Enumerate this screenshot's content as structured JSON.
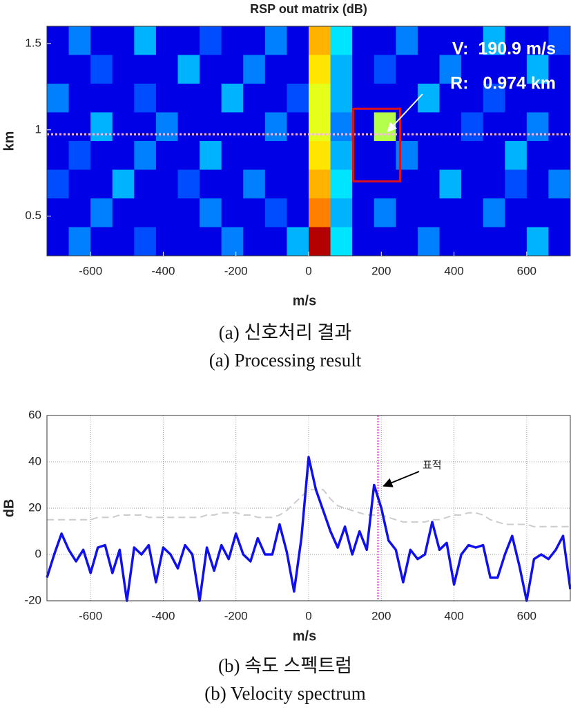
{
  "chart_data": [
    {
      "type": "heatmap",
      "title": "RSP out matrix (dB)",
      "xlabel": "m/s",
      "ylabel": "km",
      "xlim": [
        -720,
        720
      ],
      "ylim": [
        0.27,
        1.6
      ],
      "xticks": [
        -600,
        -400,
        -200,
        0,
        200,
        400,
        600
      ],
      "yticks": [
        0.5,
        1,
        1.5
      ],
      "zlim": [
        0,
        40
      ],
      "colormap": "jet",
      "grid": false,
      "z": [
        [
          4,
          10,
          4,
          4,
          12,
          4,
          4,
          8,
          4,
          4,
          10,
          4,
          28,
          14,
          4,
          4,
          10,
          4,
          4,
          4,
          12,
          4,
          4,
          8
        ],
        [
          4,
          4,
          8,
          4,
          4,
          4,
          12,
          4,
          4,
          10,
          4,
          4,
          26,
          12,
          4,
          8,
          4,
          4,
          10,
          4,
          4,
          4,
          12,
          4
        ],
        [
          10,
          4,
          4,
          4,
          8,
          4,
          4,
          4,
          12,
          4,
          4,
          8,
          24,
          12,
          4,
          4,
          4,
          12,
          4,
          4,
          8,
          4,
          4,
          4
        ],
        [
          4,
          4,
          12,
          4,
          4,
          10,
          4,
          4,
          4,
          4,
          10,
          4,
          24,
          10,
          4,
          22,
          4,
          4,
          4,
          8,
          4,
          4,
          10,
          4
        ],
        [
          4,
          8,
          4,
          4,
          10,
          4,
          4,
          12,
          4,
          4,
          4,
          4,
          26,
          12,
          4,
          4,
          10,
          4,
          4,
          4,
          4,
          12,
          4,
          4
        ],
        [
          8,
          4,
          4,
          12,
          4,
          4,
          8,
          4,
          4,
          10,
          4,
          4,
          28,
          14,
          4,
          4,
          4,
          4,
          12,
          4,
          4,
          8,
          4,
          10
        ],
        [
          4,
          4,
          10,
          4,
          4,
          4,
          4,
          10,
          4,
          4,
          8,
          4,
          30,
          12,
          4,
          10,
          4,
          4,
          4,
          4,
          10,
          4,
          4,
          4
        ],
        [
          4,
          10,
          4,
          4,
          8,
          4,
          4,
          4,
          10,
          4,
          4,
          12,
          38,
          14,
          4,
          4,
          4,
          10,
          4,
          4,
          4,
          4,
          12,
          4
        ]
      ],
      "marker_y": 0.974,
      "target_x": 190.9,
      "annotations": [
        "V:  190.9 m/s",
        "R:   0.974 km"
      ],
      "captions": [
        "(a) 신호처리 결과",
        "(a) Processing result"
      ]
    },
    {
      "type": "line",
      "xlabel": "m/s",
      "ylabel": "dB",
      "xlim": [
        -720,
        720
      ],
      "ylim": [
        -20,
        60
      ],
      "xticks": [
        -600,
        -400,
        -200,
        0,
        200,
        400,
        600
      ],
      "yticks": [
        -20,
        0,
        20,
        40,
        60
      ],
      "grid": true,
      "x": [
        -720,
        -700,
        -680,
        -660,
        -640,
        -620,
        -600,
        -580,
        -560,
        -540,
        -520,
        -500,
        -480,
        -460,
        -440,
        -420,
        -400,
        -380,
        -360,
        -340,
        -320,
        -300,
        -280,
        -260,
        -240,
        -220,
        -200,
        -180,
        -160,
        -140,
        -120,
        -100,
        -80,
        -60,
        -40,
        -20,
        0,
        20,
        40,
        60,
        80,
        100,
        120,
        140,
        160,
        180,
        200,
        220,
        240,
        260,
        280,
        300,
        320,
        340,
        360,
        380,
        400,
        420,
        440,
        460,
        480,
        500,
        520,
        540,
        560,
        580,
        600,
        620,
        640,
        660,
        680,
        700,
        720
      ],
      "series": [
        {
          "color": "#cccccc",
          "dash": true,
          "values": [
            15,
            15,
            15,
            15,
            15,
            15,
            15,
            16,
            16,
            16,
            17,
            17,
            17,
            17,
            16,
            16,
            16,
            16,
            16,
            16,
            16,
            16,
            17,
            17,
            18,
            18,
            18,
            17,
            17,
            16,
            16,
            16,
            17,
            19,
            22,
            25,
            28,
            28,
            28,
            24,
            21,
            20,
            19,
            18,
            17,
            17,
            17,
            16,
            15,
            14,
            14,
            14,
            14,
            15,
            15,
            16,
            17,
            17,
            18,
            18,
            17,
            15,
            14,
            13,
            13,
            13,
            13,
            12,
            12,
            12,
            12,
            12,
            12
          ]
        },
        {
          "color": "#1010ee",
          "dash": false,
          "values": [
            -10,
            0,
            9,
            2,
            -3,
            2,
            -8,
            3,
            4,
            -8,
            2,
            -20,
            3,
            0,
            4,
            -12,
            3,
            0,
            -6,
            4,
            0,
            -20,
            3,
            -7,
            4,
            -2,
            9,
            0,
            -3,
            7,
            0,
            0,
            13,
            1,
            -16,
            7,
            42,
            28,
            19,
            10,
            3,
            12,
            0,
            10,
            2,
            30,
            20,
            6,
            2,
            -12,
            2,
            -2,
            0,
            14,
            2,
            5,
            -13,
            0,
            4,
            3,
            4,
            -10,
            -10,
            0,
            8,
            -5,
            -20,
            -2,
            0,
            -2,
            2,
            8,
            -15
          ]
        }
      ],
      "marker_x": 190.9,
      "annotations": [
        "표적"
      ],
      "captions": [
        "(b) 속도 스펙트럼",
        "(b) Velocity spectrum"
      ]
    }
  ]
}
